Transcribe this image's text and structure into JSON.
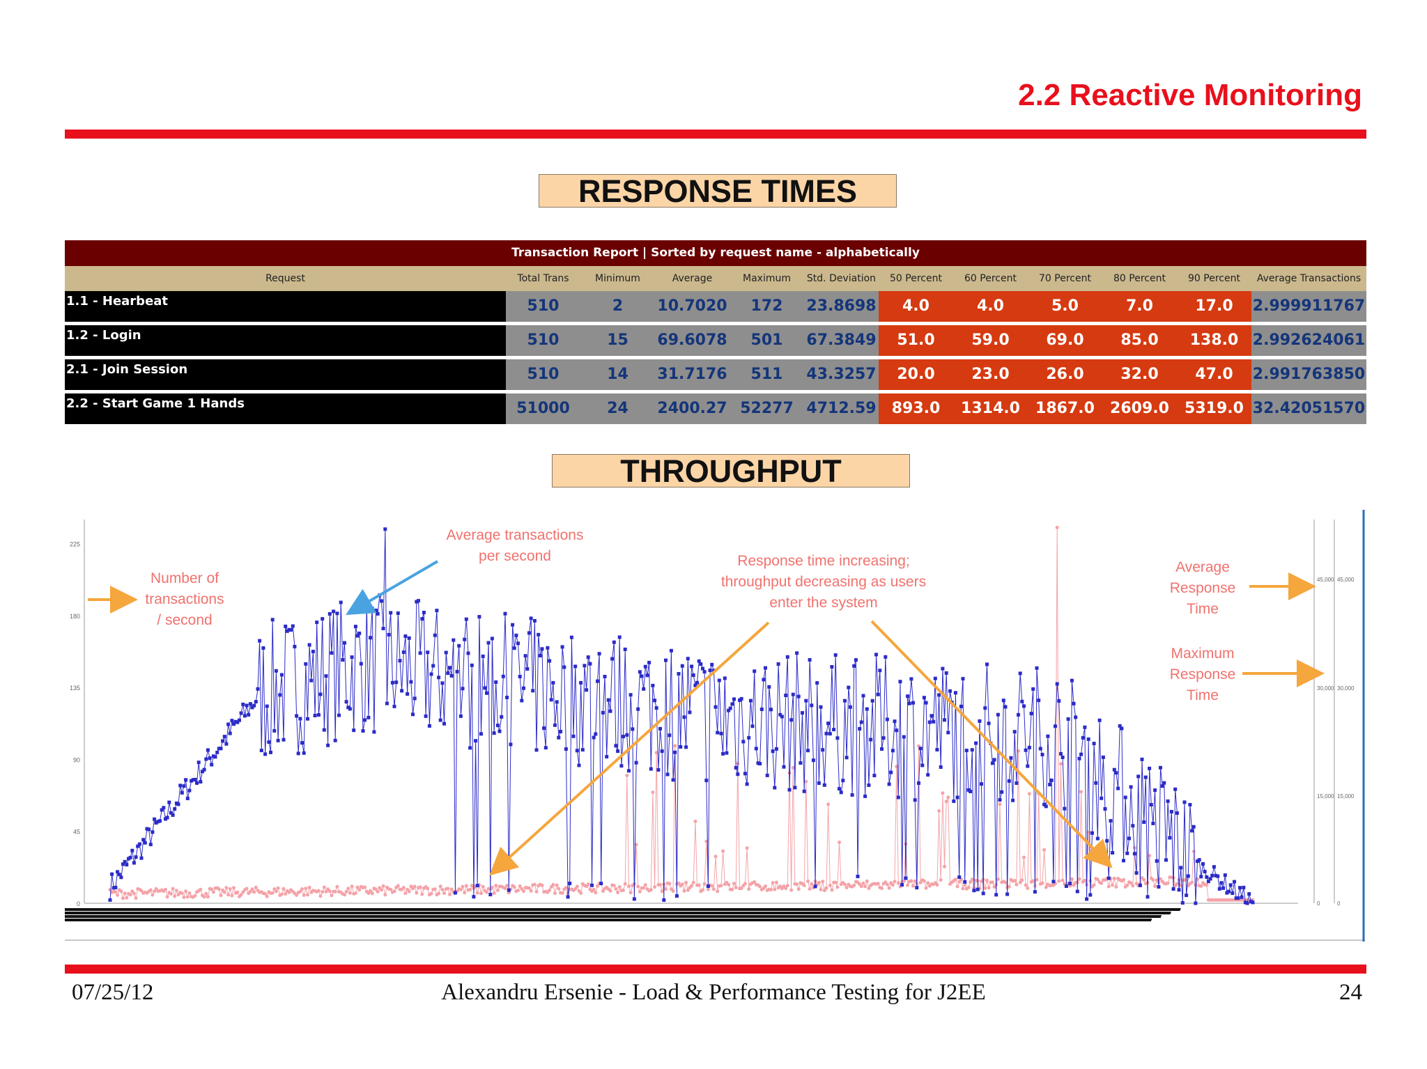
{
  "slide": {
    "title": "2.2 Reactive Monitoring",
    "accent": "#e8101c"
  },
  "response_section": {
    "label": "RESPONSE TIMES"
  },
  "report": {
    "title": "Transaction Report | Sorted by request name - alphabetically",
    "columns": [
      "Request",
      "Total Trans",
      "Minimum",
      "Average",
      "Maximum",
      "Std. Deviation",
      "50 Percent",
      "60 Percent",
      "70 Percent",
      "80 Percent",
      "90 Percent",
      "Average Transactions"
    ],
    "rows": [
      {
        "name": "1.1 - Hearbeat",
        "values": [
          "510",
          "2",
          "10.7020",
          "172",
          "23.8698",
          "4.0",
          "4.0",
          "5.0",
          "7.0",
          "17.0",
          "2.999911767"
        ]
      },
      {
        "name": "1.2 - Login",
        "values": [
          "510",
          "15",
          "69.6078",
          "501",
          "67.3849",
          "51.0",
          "59.0",
          "69.0",
          "85.0",
          "138.0",
          "2.992624061"
        ]
      },
      {
        "name": "2.1 - Join Session",
        "values": [
          "510",
          "14",
          "31.7176",
          "511",
          "43.3257",
          "20.0",
          "23.0",
          "26.0",
          "32.0",
          "47.0",
          "2.991763850"
        ]
      },
      {
        "name": "2.2 - Start Game 1 Hands",
        "values": [
          "51000",
          "24",
          "2400.27",
          "52277",
          "4712.59",
          "893.0",
          "1314.0",
          "1867.0",
          "2609.0",
          "5319.0",
          "32.42051570"
        ]
      }
    ],
    "colors": {
      "title_bg": "#6a0000",
      "header_bg": "#cbb88d",
      "grey": "#8e8e8e",
      "percent": "#d63a10",
      "value_text": "#14357a"
    }
  },
  "throughput_section": {
    "label": "THROUGHPUT"
  },
  "chart_data": {
    "type": "line",
    "y_ticks": [
      "225",
      "180",
      "135",
      "90",
      "45",
      "0"
    ],
    "y_right_ticks": [
      "45,000",
      "30,000",
      "15,000",
      "0"
    ],
    "ylim": [
      0,
      240
    ],
    "series": [
      {
        "color": "#2b2bc8",
        "marker": "square"
      },
      {
        "color": "#f4a3a8",
        "marker": "circle"
      }
    ],
    "annotations": [
      {
        "lines": [
          "Number of",
          "transactions",
          "/ second"
        ]
      },
      {
        "lines": [
          "Average transactions",
          "per second"
        ]
      },
      {
        "lines": [
          "Response time increasing;",
          "throughput decreasing as users",
          "enter the system"
        ]
      },
      {
        "lines": [
          "Average",
          "Response",
          "Time"
        ]
      },
      {
        "lines": [
          "Maximum",
          "Response",
          "Time"
        ]
      }
    ],
    "colors": {
      "annotation": "#f0726e",
      "orange_arrow": "#f5a63c",
      "blue_arrow": "#4aa3e0"
    }
  },
  "footer": {
    "date": "07/25/12",
    "center": "Alexandru Ersenie - Load & Performance Testing for J2EE",
    "page": "24"
  }
}
